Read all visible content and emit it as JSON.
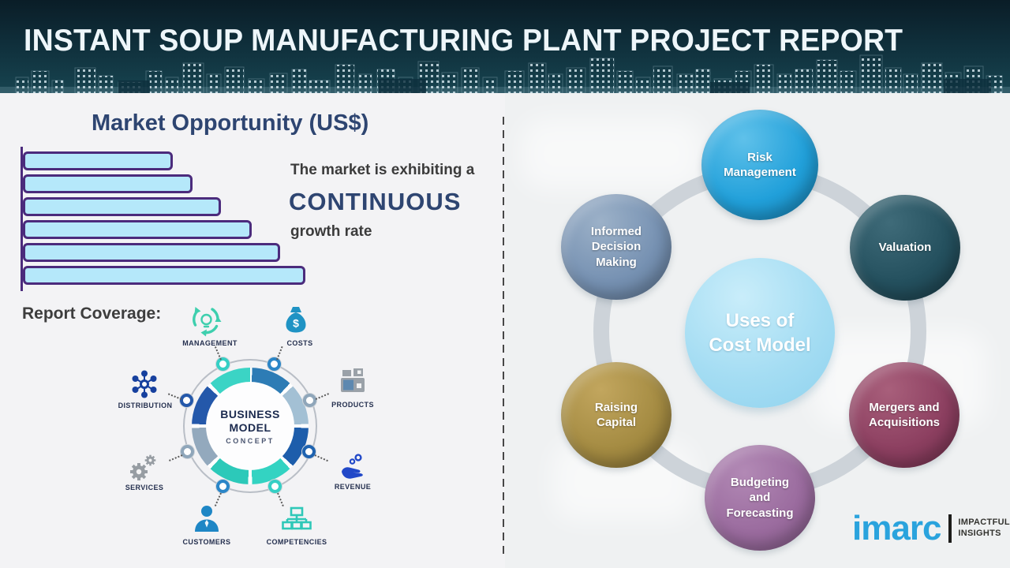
{
  "header": {
    "title": "INSTANT SOUP MANUFACTURING PLANT PROJECT REPORT"
  },
  "market_opportunity": {
    "title": "Market Opportunity (US$)",
    "caption_line1": "The market is exhibiting a",
    "caption_highlight": "CONTINUOUS",
    "caption_line2": "growth rate"
  },
  "chart_data": {
    "type": "bar",
    "orientation": "horizontal",
    "title": "Market Opportunity (US$)",
    "categories": [
      "",
      "",
      "",
      "",
      "",
      ""
    ],
    "bar_lengths_pct": [
      53,
      60,
      70,
      81,
      91,
      100
    ],
    "note": "Six unlabeled bars growing in length top to bottom, depicting continuous growth",
    "bar_fill": "#b5e8fa",
    "bar_border": "#4b2b7c",
    "grid": false,
    "legend": false
  },
  "report_coverage": {
    "label": "Report Coverage:"
  },
  "business_model": {
    "center": {
      "line1": "BUSINESS",
      "line2": "MODEL",
      "line3": "CONCEPT"
    },
    "currency_symbol": "$",
    "items": [
      {
        "label": "MANAGEMENT",
        "icon": "management-cycle-bulb-icon",
        "color": "#3ecfae"
      },
      {
        "label": "COSTS",
        "icon": "money-bag-icon",
        "color": "#1f93c4"
      },
      {
        "label": "DISTRIBUTION",
        "icon": "network-icon",
        "color": "#16409e"
      },
      {
        "label": "PRODUCTS",
        "icon": "box-icon",
        "color": "#9aa1a8"
      },
      {
        "label": "SERVICES",
        "icon": "gears-icon",
        "color": "#979da3"
      },
      {
        "label": "REVENUE",
        "icon": "hand-coins-icon",
        "color": "#2148c8"
      },
      {
        "label": "CUSTOMERS",
        "icon": "person-icon",
        "color": "#1e86c5"
      },
      {
        "label": "COMPETENCIES",
        "icon": "org-chart-icon",
        "color": "#2fc8b8"
      }
    ]
  },
  "cost_model": {
    "center_label": "Uses of\nCost Model",
    "center_color": "#a5ddf3",
    "ring_color": "#cdd3d9",
    "bubbles": [
      {
        "label": "Risk\nManagement",
        "color": "#1f9dd8"
      },
      {
        "label": "Informed\nDecision\nMaking",
        "color": "#7691b2"
      },
      {
        "label": "Valuation",
        "color": "#24505e"
      },
      {
        "label": "Raising\nCapital",
        "color": "#a48b42"
      },
      {
        "label": "Mergers and\nAcquisitions",
        "color": "#8c3f60"
      },
      {
        "label": "Budgeting\nand\nForecasting",
        "color": "#9a6b9e"
      }
    ]
  },
  "logo": {
    "brand": "imarc",
    "tagline_line1": "IMPACTFUL",
    "tagline_line2": "INSIGHTS",
    "brand_color": "#2aa3dd"
  }
}
